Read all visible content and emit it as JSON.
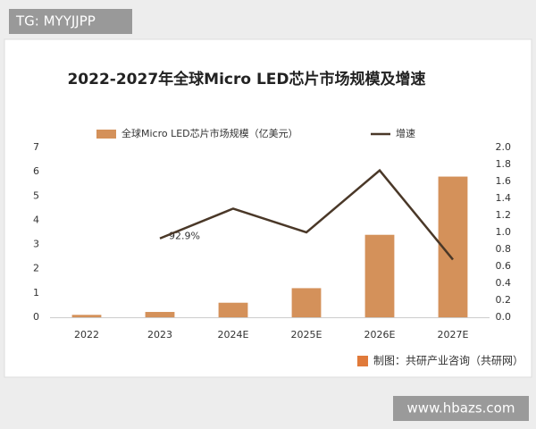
{
  "badge": "TG: MYYJJPP",
  "website": "www.hbazs.com",
  "chart_data": {
    "type": "bar",
    "title": "2022-2027年全球Micro LED芯片市场规模及增速",
    "categories": [
      "2022",
      "2023",
      "2024E",
      "2025E",
      "2026E",
      "2027E"
    ],
    "series": [
      {
        "name": "全球Micro LED芯片市场规模（亿美元）",
        "type": "bar",
        "color": "#d4915a",
        "values": [
          0.1,
          0.22,
          0.6,
          1.2,
          3.4,
          5.8
        ]
      },
      {
        "name": "增速",
        "type": "line",
        "axis": "y2",
        "color": "#4a3828",
        "values": [
          null,
          0.929,
          1.28,
          1.0,
          1.73,
          0.68
        ],
        "value_labels": [
          null,
          "92.9%",
          null,
          null,
          null,
          null
        ]
      }
    ],
    "ylim": [
      0,
      7
    ],
    "yticks": [
      0,
      1,
      2,
      3,
      4,
      5,
      6,
      7
    ],
    "y2lim": [
      0,
      2
    ],
    "y2ticks": [
      {
        "value": 0,
        "label": "0.0"
      },
      0.2,
      0.4,
      0.6,
      0.8,
      {
        "value": 1,
        "label": "1.0"
      },
      1.2,
      1.4,
      1.6,
      1.8,
      {
        "value": 2,
        "label": "2.0"
      }
    ],
    "grid": false,
    "legend": "top",
    "source": "制图：共研产业咨询（共研网）"
  }
}
